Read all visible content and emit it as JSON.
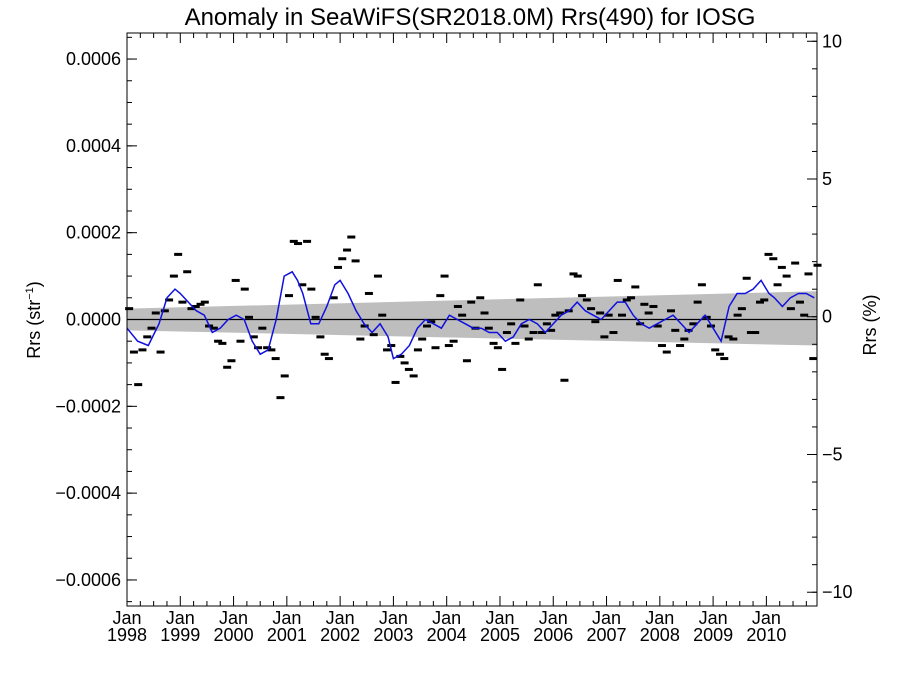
{
  "chart_data": {
    "type": "line",
    "title": "Anomaly in SeaWiFS(SR2018.0M) Rrs(490) for IOSG",
    "ylabel_left": "Rrs (str",
    "ylabel_left_sup": "−1",
    "ylabel_left_close": ")",
    "ylabel_right": "Rrs (%)",
    "xlim": [
      1998.0,
      2010.95
    ],
    "ylim": [
      -0.00066,
      0.00066
    ],
    "ylim_right": [
      -10.5,
      10.3
    ],
    "x_ticks": [
      {
        "value": 1998,
        "month": "Jan",
        "year": "1998"
      },
      {
        "value": 1999,
        "month": "Jan",
        "year": "1999"
      },
      {
        "value": 2000,
        "month": "Jan",
        "year": "2000"
      },
      {
        "value": 2001,
        "month": "Jan",
        "year": "2001"
      },
      {
        "value": 2002,
        "month": "Jan",
        "year": "2002"
      },
      {
        "value": 2003,
        "month": "Jan",
        "year": "2003"
      },
      {
        "value": 2004,
        "month": "Jan",
        "year": "2004"
      },
      {
        "value": 2005,
        "month": "Jan",
        "year": "2005"
      },
      {
        "value": 2006,
        "month": "Jan",
        "year": "2006"
      },
      {
        "value": 2007,
        "month": "Jan",
        "year": "2007"
      },
      {
        "value": 2008,
        "month": "Jan",
        "year": "2008"
      },
      {
        "value": 2009,
        "month": "Jan",
        "year": "2009"
      },
      {
        "value": 2010,
        "month": "Jan",
        "year": "2010"
      }
    ],
    "y_ticks_left": [
      {
        "value": 0.0006,
        "label": "0.0006"
      },
      {
        "value": 0.0004,
        "label": "0.0004"
      },
      {
        "value": 0.0002,
        "label": "0.0002"
      },
      {
        "value": 0.0,
        "label": "0.0000"
      },
      {
        "value": -0.0002,
        "label": "−0.0002"
      },
      {
        "value": -0.0004,
        "label": "−0.0004"
      },
      {
        "value": -0.0006,
        "label": "−0.0006"
      }
    ],
    "y_ticks_right": [
      {
        "value": 10,
        "label": "10"
      },
      {
        "value": 5,
        "label": "5"
      },
      {
        "value": 0,
        "label": "0"
      },
      {
        "value": -5,
        "label": "−5"
      },
      {
        "value": -10,
        "label": "−10"
      }
    ],
    "band": {
      "x": [
        1998.0,
        2010.95
      ],
      "upper": [
        2.5e-05,
        6.5e-05
      ],
      "lower": [
        -2.5e-05,
        -6e-05
      ],
      "color": "#bebebe"
    },
    "zero_line": 0,
    "line_color": "#1010e0",
    "marker_color": "#000000",
    "series": [
      {
        "kind": "monthly_markers",
        "x": [
          1998.04,
          1998.13,
          1998.21,
          1998.29,
          1998.38,
          1998.46,
          1998.54,
          1998.63,
          1998.71,
          1998.79,
          1998.88,
          1998.96,
          1999.04,
          1999.13,
          1999.21,
          1999.29,
          1999.38,
          1999.46,
          1999.54,
          1999.63,
          1999.71,
          1999.79,
          1999.88,
          1999.96,
          2000.04,
          2000.13,
          2000.21,
          2000.29,
          2000.38,
          2000.46,
          2000.54,
          2000.63,
          2000.71,
          2000.79,
          2000.88,
          2000.96,
          2001.04,
          2001.13,
          2001.21,
          2001.29,
          2001.38,
          2001.46,
          2001.54,
          2001.63,
          2001.71,
          2001.79,
          2001.88,
          2001.96,
          2002.04,
          2002.13,
          2002.21,
          2002.29,
          2002.38,
          2002.46,
          2002.54,
          2002.63,
          2002.71,
          2002.79,
          2002.88,
          2002.96,
          2003.04,
          2003.13,
          2003.21,
          2003.29,
          2003.38,
          2003.46,
          2003.54,
          2003.63,
          2003.71,
          2003.79,
          2003.88,
          2003.96,
          2004.04,
          2004.13,
          2004.21,
          2004.29,
          2004.38,
          2004.46,
          2004.54,
          2004.63,
          2004.71,
          2004.79,
          2004.88,
          2004.96,
          2005.04,
          2005.13,
          2005.21,
          2005.29,
          2005.38,
          2005.46,
          2005.54,
          2005.63,
          2005.71,
          2005.79,
          2005.88,
          2005.96,
          2006.04,
          2006.13,
          2006.21,
          2006.29,
          2006.38,
          2006.46,
          2006.54,
          2006.63,
          2006.71,
          2006.79,
          2006.88,
          2006.96,
          2007.04,
          2007.13,
          2007.21,
          2007.29,
          2007.38,
          2007.46,
          2007.54,
          2007.63,
          2007.71,
          2007.79,
          2007.88,
          2007.96,
          2008.04,
          2008.13,
          2008.21,
          2008.29,
          2008.38,
          2008.46,
          2008.54,
          2008.63,
          2008.71,
          2008.79,
          2008.88,
          2008.96,
          2009.04,
          2009.13,
          2009.21,
          2009.29,
          2009.38,
          2009.46,
          2009.54,
          2009.63,
          2009.71,
          2009.79,
          2009.88,
          2009.96,
          2010.04,
          2010.13,
          2010.21,
          2010.29,
          2010.38,
          2010.46,
          2010.54,
          2010.63,
          2010.71,
          2010.79,
          2010.88,
          2010.96
        ],
        "y": [
          2.5e-05,
          -7.5e-05,
          -0.00015,
          -7e-05,
          -4e-05,
          -2e-05,
          1.5e-05,
          -7.5e-05,
          2e-05,
          4.5e-05,
          0.0001,
          0.00015,
          4e-05,
          0.00011,
          2.5e-05,
          3e-05,
          3.5e-05,
          4e-05,
          -1.5e-05,
          -2e-05,
          -5e-05,
          -5.5e-05,
          -0.00011,
          -9.5e-05,
          9e-05,
          -5e-05,
          7e-05,
          5e-06,
          -4e-05,
          -6.5e-05,
          -2e-05,
          -6.5e-05,
          -7e-05,
          -9e-05,
          -0.00018,
          -0.00013,
          5.5e-05,
          0.00018,
          0.000175,
          8e-05,
          0.00018,
          7e-05,
          5e-06,
          -4e-05,
          -8e-05,
          -9e-05,
          5e-05,
          0.00012,
          0.00014,
          0.00016,
          0.00019,
          0.000135,
          -4.5e-05,
          -1.5e-05,
          6e-05,
          -3.5e-05,
          0.0001,
          1e-05,
          -7e-05,
          -6e-05,
          -0.000145,
          -8.5e-05,
          -0.0001,
          -0.000115,
          -0.00013,
          -7e-05,
          -4.5e-05,
          -1.5e-05,
          -5e-06,
          -6.5e-05,
          5.5e-05,
          0.0001,
          -6e-05,
          -5e-05,
          3e-05,
          1e-05,
          -9.5e-05,
          4e-05,
          -2e-05,
          5e-05,
          1.5e-05,
          -2e-05,
          -5.5e-05,
          -6.5e-05,
          -0.000115,
          -3e-05,
          -1e-05,
          -5.5e-05,
          4.5e-05,
          -1.5e-05,
          -4.5e-05,
          -3e-05,
          8e-05,
          -3e-05,
          -1e-05,
          -2.5e-05,
          1e-05,
          1.5e-05,
          -0.00014,
          2e-05,
          0.000105,
          0.0001,
          5.5e-05,
          4.5e-05,
          2.5e-05,
          -5e-06,
          1.5e-05,
          -4e-05,
          1e-05,
          -3e-05,
          9e-05,
          1e-05,
          4.5e-05,
          5e-05,
          7.5e-05,
          -1e-05,
          3.5e-05,
          1.5e-05,
          3e-05,
          -1.5e-05,
          -6e-05,
          -7.5e-05,
          2e-05,
          -2.5e-05,
          -6e-05,
          -4.5e-05,
          -2.5e-05,
          -1e-05,
          4e-05,
          8e-05,
          5e-06,
          -1.5e-05,
          -7e-05,
          -8e-05,
          -9e-05,
          -4e-05,
          -4.5e-05,
          1e-05,
          2.5e-05,
          9.5e-05,
          -3e-05,
          -3e-05,
          4e-05,
          4.5e-05,
          0.00015,
          0.00014,
          8e-05,
          0.00012,
          0.0001,
          2.5e-05,
          0.00013,
          4e-05,
          1e-05,
          0.000105,
          -9e-05,
          0.000125
        ]
      },
      {
        "kind": "running_mean_line",
        "x": [
          1998.0,
          1998.2,
          1998.4,
          1998.6,
          1998.75,
          1998.9,
          1999.0,
          1999.15,
          1999.3,
          1999.45,
          1999.6,
          1999.75,
          1999.9,
          2000.05,
          2000.2,
          2000.35,
          2000.5,
          2000.65,
          2000.8,
          2000.95,
          2001.1,
          2001.2,
          2001.3,
          2001.45,
          2001.6,
          2001.75,
          2001.9,
          2002.0,
          2002.15,
          2002.3,
          2002.45,
          2002.6,
          2002.75,
          2002.9,
          2003.0,
          2003.15,
          2003.3,
          2003.45,
          2003.6,
          2003.75,
          2003.9,
          2004.05,
          2004.2,
          2004.35,
          2004.5,
          2004.65,
          2004.8,
          2004.95,
          2005.1,
          2005.25,
          2005.4,
          2005.55,
          2005.7,
          2005.85,
          2006.0,
          2006.15,
          2006.3,
          2006.45,
          2006.6,
          2006.75,
          2006.9,
          2007.05,
          2007.2,
          2007.35,
          2007.5,
          2007.65,
          2007.8,
          2007.95,
          2008.1,
          2008.25,
          2008.4,
          2008.55,
          2008.7,
          2008.85,
          2009.0,
          2009.15,
          2009.3,
          2009.45,
          2009.6,
          2009.75,
          2009.9,
          2010.05,
          2010.15,
          2010.3,
          2010.45,
          2010.6,
          2010.75,
          2010.9
        ],
        "y": [
          -2e-05,
          -5e-05,
          -6e-05,
          -1e-05,
          5e-05,
          7e-05,
          6e-05,
          4e-05,
          2e-05,
          1e-05,
          -3e-05,
          -2e-05,
          0.0,
          1e-05,
          0.0,
          -5e-05,
          -8e-05,
          -7e-05,
          0.0,
          0.0001,
          0.00011,
          9e-05,
          6e-05,
          -1e-05,
          -1e-05,
          3e-05,
          8e-05,
          9e-05,
          6e-05,
          2e-05,
          -1e-05,
          -3e-05,
          -1e-05,
          -4e-05,
          -9e-05,
          -8e-05,
          -6e-05,
          -2e-05,
          0.0,
          -1e-05,
          -2e-05,
          1e-05,
          0.0,
          -1e-05,
          -2e-05,
          -2e-05,
          -3e-05,
          -3e-05,
          -5e-05,
          -4e-05,
          -1e-05,
          0.0,
          -1e-05,
          -3e-05,
          -1e-05,
          1e-05,
          2e-05,
          4e-05,
          2e-05,
          1e-05,
          0.0,
          2e-05,
          4e-05,
          4e-05,
          1e-05,
          -1e-05,
          -2e-05,
          -1e-05,
          0.0,
          1e-05,
          -1e-05,
          -3e-05,
          -1e-05,
          1e-05,
          -2e-05,
          -5e-05,
          3e-05,
          6e-05,
          6e-05,
          7e-05,
          9e-05,
          6e-05,
          5e-05,
          3e-05,
          5e-05,
          6e-05,
          6e-05,
          5e-05
        ]
      }
    ]
  }
}
